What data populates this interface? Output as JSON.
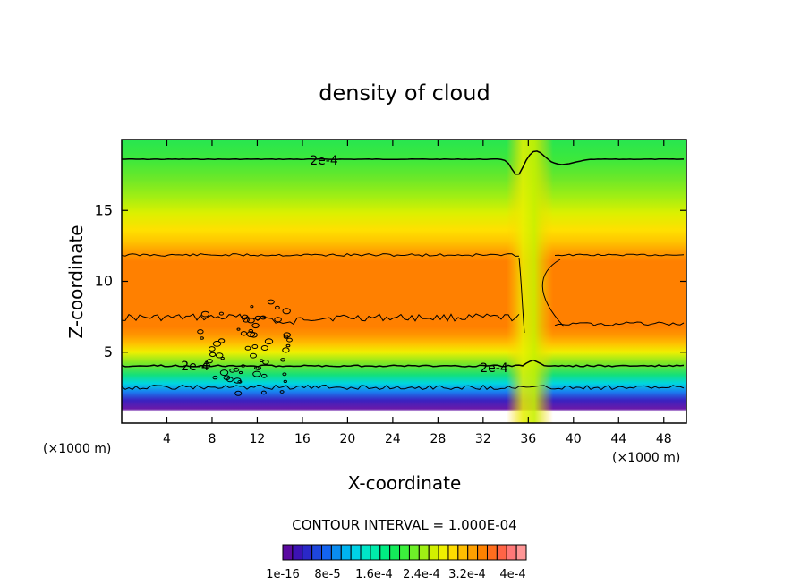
{
  "chart_data": {
    "type": "heatmap",
    "title": "density of cloud",
    "xlabel": "X-coordinate",
    "ylabel": "Z-coordinate",
    "x_unit_left": "(×1000 m)",
    "x_unit_right": "(×1000 m)",
    "xlim": [
      0,
      50
    ],
    "ylim": [
      0,
      20
    ],
    "x_ticks": [
      "4",
      "8",
      "12",
      "16",
      "20",
      "24",
      "28",
      "32",
      "36",
      "40",
      "44",
      "48"
    ],
    "y_ticks": [
      "5",
      "10",
      "15"
    ],
    "contour_interval_text": "CONTOUR INTERVAL = 1.000E-04",
    "contour_labels": [
      "2e-4",
      "2e-4",
      "2e-4"
    ],
    "colorbar_labels": [
      "1e-16",
      "8e-5",
      "1.6e-4",
      "2.4e-4",
      "3.2e-4",
      "4e-4"
    ],
    "colorbar_colors": [
      "#5a0aa0",
      "#3c12b4",
      "#2a28c8",
      "#1e46dc",
      "#1464f0",
      "#0a8cf0",
      "#00b4f0",
      "#00d2e6",
      "#00e6c8",
      "#00ebaa",
      "#00eb82",
      "#14eb5a",
      "#3cf03c",
      "#6ef028",
      "#a0f014",
      "#d2f000",
      "#f0f000",
      "#ffdc00",
      "#ffbe00",
      "#ffa000",
      "#ff8200",
      "#ff6e1e",
      "#ff6446",
      "#ff7878",
      "#ff9696"
    ]
  }
}
